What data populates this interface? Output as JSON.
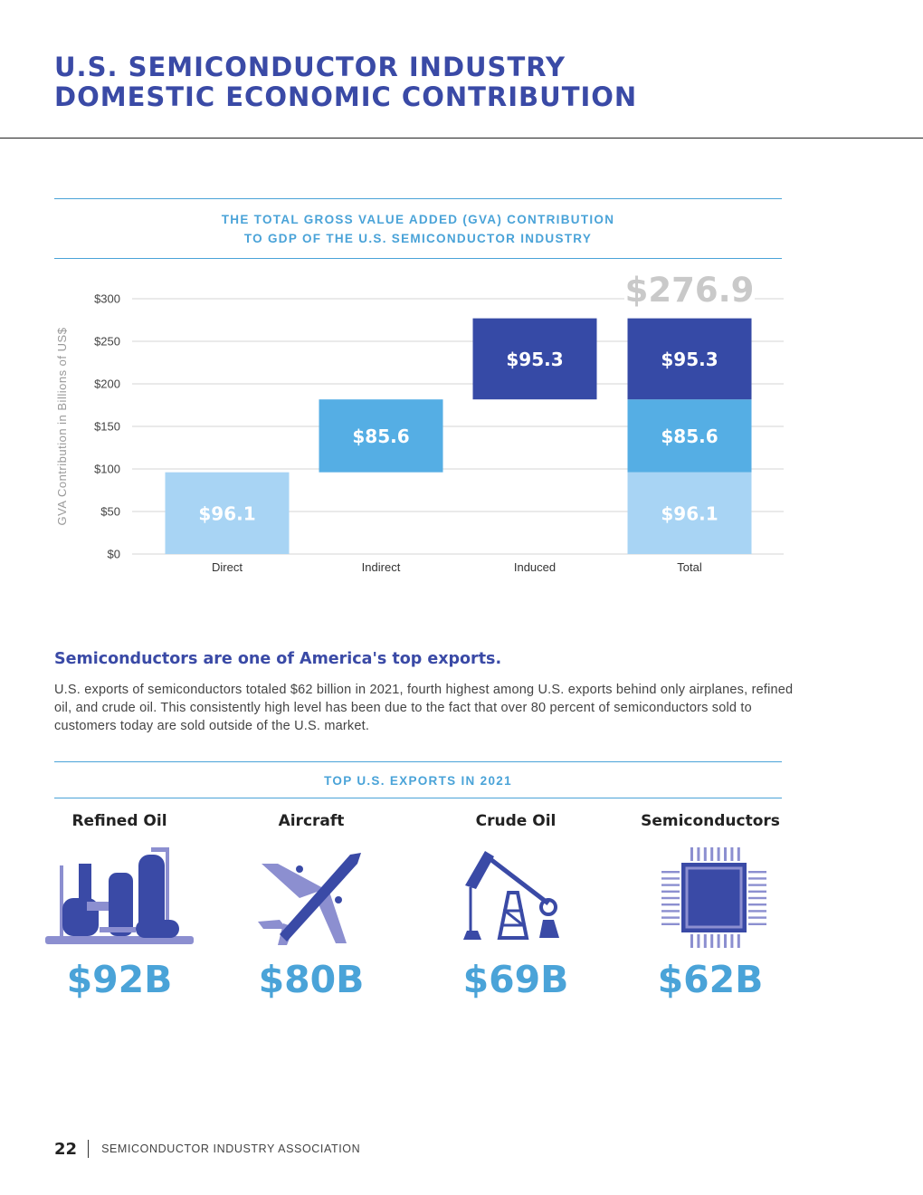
{
  "page": {
    "title_line1": "U.S. SEMICONDUCTOR INDUSTRY",
    "title_line2": "DOMESTIC ECONOMIC CONTRIBUTION"
  },
  "chart_data": {
    "type": "bar",
    "subtype": "waterfall",
    "title_line1": "THE TOTAL GROSS VALUE ADDED (GVA) CONTRIBUTION",
    "title_line2": "TO GDP OF THE U.S. SEMICONDUCTOR INDUSTRY",
    "ylabel": "GVA Contribution in Billions of US$",
    "ylim": [
      0,
      300
    ],
    "yticks": [
      0,
      50,
      100,
      150,
      200,
      250,
      300
    ],
    "ytick_labels": [
      "$0",
      "$50",
      "$100",
      "$150",
      "$200",
      "$250",
      "$300"
    ],
    "categories": [
      "Direct",
      "Indirect",
      "Induced",
      "Total"
    ],
    "segments": [
      {
        "category": "Direct",
        "base": 0,
        "value": 96.1,
        "label": "$96.1",
        "color": "#a8d4f4"
      },
      {
        "category": "Indirect",
        "base": 96.1,
        "value": 85.6,
        "label": "$85.6",
        "color": "#55aee4"
      },
      {
        "category": "Induced",
        "base": 181.7,
        "value": 95.3,
        "label": "$95.3",
        "color": "#364aa6"
      },
      {
        "category": "Total",
        "base": 0,
        "value": 96.1,
        "label": "$96.1",
        "color": "#a8d4f4"
      },
      {
        "category": "Total",
        "base": 96.1,
        "value": 85.6,
        "label": "$85.6",
        "color": "#55aee4"
      },
      {
        "category": "Total",
        "base": 181.7,
        "value": 95.3,
        "label": "$95.3",
        "color": "#364aa6"
      }
    ],
    "total_value": 276.9,
    "total_label": "$276.9",
    "grid": true
  },
  "exports_intro": {
    "heading": "Semiconductors are one of America's top exports.",
    "body": "U.S. exports of semiconductors totaled $62 billion in 2021, fourth highest among U.S. exports behind only airplanes, refined oil, and crude oil. This consistently high level has been due to the fact that over 80 percent of semiconductors sold to customers today are sold outside of the U.S. market."
  },
  "exports": {
    "heading": "TOP U.S. EXPORTS IN 2021",
    "items": [
      {
        "label": "Refined Oil",
        "value": "$92B",
        "icon": "refinery-icon"
      },
      {
        "label": "Aircraft",
        "value": "$80B",
        "icon": "airplane-icon"
      },
      {
        "label": "Crude Oil",
        "value": "$69B",
        "icon": "oil-pump-icon"
      },
      {
        "label": "Semiconductors",
        "value": "$62B",
        "icon": "microchip-icon"
      }
    ]
  },
  "footer": {
    "page_number": "22",
    "org": "SEMICONDUCTOR INDUSTRY ASSOCIATION"
  },
  "colors": {
    "navy": "#3a4aa6",
    "sky": "#4aa3d8",
    "light_blue": "#a8d4f4",
    "icon_purple": "#8c8fd0"
  }
}
